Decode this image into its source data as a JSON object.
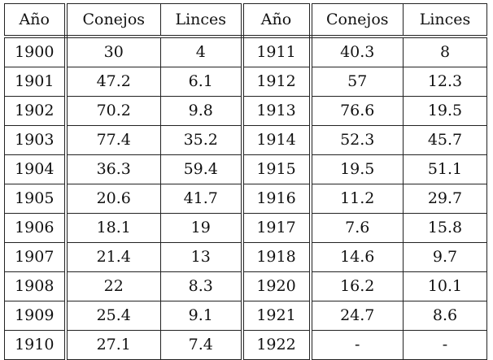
{
  "table": {
    "headers": [
      "Año",
      "Conejos",
      "Linces",
      "Año",
      "Conejos",
      "Linces"
    ],
    "rows": [
      [
        "1900",
        "30",
        "4",
        "1911",
        "40.3",
        "8"
      ],
      [
        "1901",
        "47.2",
        "6.1",
        "1912",
        "57",
        "12.3"
      ],
      [
        "1902",
        "70.2",
        "9.8",
        "1913",
        "76.6",
        "19.5"
      ],
      [
        "1903",
        "77.4",
        "35.2",
        "1914",
        "52.3",
        "45.7"
      ],
      [
        "1904",
        "36.3",
        "59.4",
        "1915",
        "19.5",
        "51.1"
      ],
      [
        "1905",
        "20.6",
        "41.7",
        "1916",
        "11.2",
        "29.7"
      ],
      [
        "1906",
        "18.1",
        "19",
        "1917",
        "7.6",
        "15.8"
      ],
      [
        "1907",
        "21.4",
        "13",
        "1918",
        "14.6",
        "9.7"
      ],
      [
        "1908",
        "22",
        "8.3",
        "1920",
        "16.2",
        "10.1"
      ],
      [
        "1909",
        "25.4",
        "9.1",
        "1921",
        "24.7",
        "8.6"
      ],
      [
        "1910",
        "27.1",
        "7.4",
        "1922",
        "-",
        "-"
      ]
    ]
  }
}
